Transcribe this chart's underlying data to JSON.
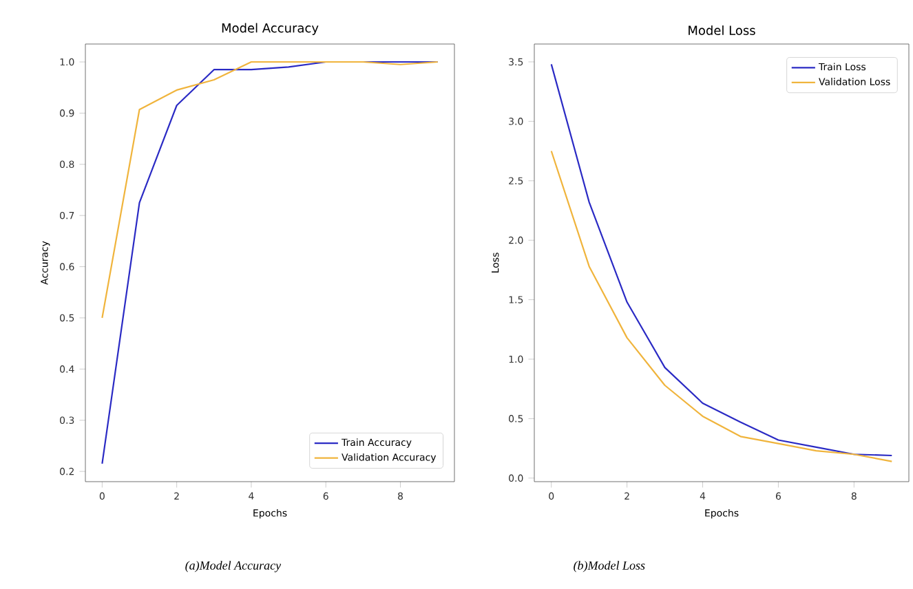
{
  "chart_data": [
    {
      "type": "line",
      "title": "Model Accuracy",
      "xlabel": "Epochs",
      "ylabel": "Accuracy",
      "x": [
        0,
        1,
        2,
        3,
        4,
        5,
        6,
        7,
        8,
        9
      ],
      "series": [
        {
          "name": "Train Accuracy",
          "color": "#2a2ac4",
          "values": [
            0.215,
            0.725,
            0.915,
            0.985,
            0.985,
            0.99,
            1.0,
            1.0,
            1.0,
            1.0
          ]
        },
        {
          "name": "Validation Accuracy",
          "color": "#f0b43c",
          "values": [
            0.5,
            0.907,
            0.945,
            0.965,
            1.0,
            1.0,
            1.0,
            1.0,
            0.995,
            1.0
          ]
        }
      ],
      "xlim": [
        -0.45,
        9.45
      ],
      "ylim": [
        0.18,
        1.035
      ],
      "xticks": [
        0,
        2,
        4,
        6,
        8
      ],
      "yticks": [
        0.2,
        0.3,
        0.4,
        0.5,
        0.6,
        0.7,
        0.8,
        0.9,
        {
          "value": 1.0,
          "label": "1.0"
        }
      ],
      "legend": "bottom right",
      "grid": false,
      "annotations": [
        "(a)Model Accuracy"
      ]
    },
    {
      "type": "line",
      "title": "Model Loss",
      "xlabel": "Epochs",
      "ylabel": "Loss",
      "x": [
        0,
        1,
        2,
        3,
        4,
        5,
        6,
        7,
        8,
        9
      ],
      "series": [
        {
          "name": "Train Loss",
          "color": "#2a2ac4",
          "values": [
            3.48,
            2.32,
            1.48,
            0.93,
            0.63,
            0.47,
            0.32,
            0.26,
            0.2,
            0.19
          ]
        },
        {
          "name": "Validation Loss",
          "color": "#f0b43c",
          "values": [
            2.75,
            1.78,
            1.18,
            0.78,
            0.52,
            0.35,
            0.29,
            0.23,
            0.2,
            0.14
          ]
        }
      ],
      "xlim": [
        -0.45,
        9.45
      ],
      "ylim": [
        -0.03,
        3.65
      ],
      "xticks": [
        0,
        2,
        4,
        6,
        8
      ],
      "yticks": [
        {
          "value": 0.0,
          "label": "0.0"
        },
        0.5,
        {
          "value": 1.0,
          "label": "1.0"
        },
        1.5,
        {
          "value": 2.0,
          "label": "2.0"
        },
        2.5,
        {
          "value": 3.0,
          "label": "3.0"
        },
        3.5
      ],
      "legend": "top right",
      "grid": false,
      "annotations": [
        "(b)Model Loss"
      ]
    }
  ]
}
